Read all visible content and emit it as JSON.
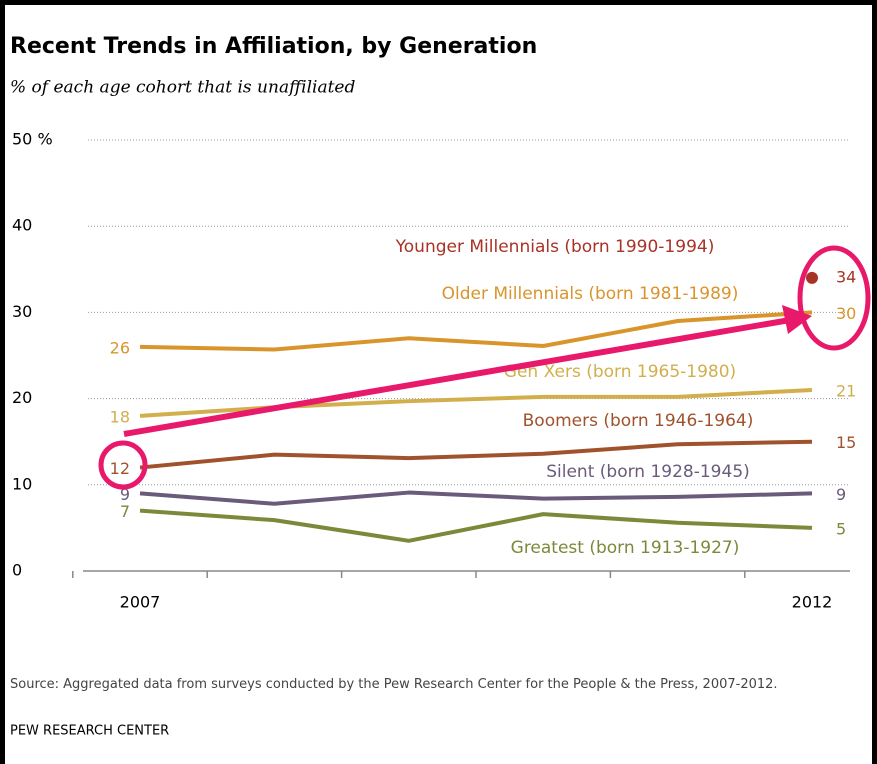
{
  "chart_data": {
    "type": "line",
    "title": "Recent Trends in Affiliation, by Generation",
    "subtitle": "% of each age cohort that is unaffiliated",
    "categories": [
      "2007",
      null,
      null,
      null,
      null,
      "2012"
    ],
    "ylim": [
      0,
      50
    ],
    "yticks": [
      0,
      10,
      20,
      30,
      40,
      {
        "value": 50,
        "label": "50 %"
      }
    ],
    "grid": true,
    "series": [
      {
        "name": "Younger Millennials (born 1990-1994)",
        "color": "#a93226",
        "values": [
          null,
          null,
          null,
          null,
          null,
          34
        ]
      },
      {
        "name": "Older Millennials (born 1981-1989)",
        "color": "#d9952b",
        "values": [
          26,
          25.7,
          27,
          26.1,
          29,
          30
        ]
      },
      {
        "name": "Gen Xers (born 1965-1980)",
        "color": "#d2ae4c",
        "values": [
          18,
          19,
          19.7,
          20.2,
          20.2,
          21
        ]
      },
      {
        "name": "Boomers (born 1946-1964)",
        "color": "#a0522d",
        "values": [
          12,
          13.5,
          13.1,
          13.6,
          14.7,
          15
        ]
      },
      {
        "name": "Silent (born 1928-1945)",
        "color": "#6b5b7b",
        "values": [
          9,
          7.8,
          9.1,
          8.4,
          8.6,
          9
        ]
      },
      {
        "name": "Greatest (born 1913-1927)",
        "color": "#7a8a3a",
        "values": [
          7,
          5.9,
          3.5,
          6.6,
          5.6,
          5
        ]
      }
    ],
    "source": "Source: Aggregated data from surveys conducted by the Pew  Research Center for the People & the Press, 2007-2012.",
    "footer": "PEW RESEARCH  CENTER"
  }
}
